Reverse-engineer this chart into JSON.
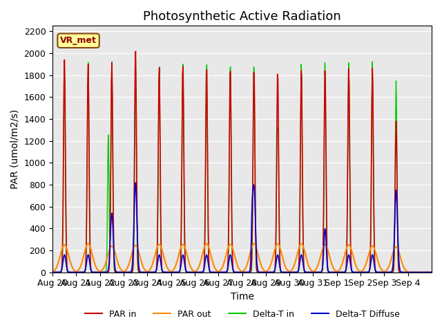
{
  "title": "Photosynthetic Active Radiation",
  "ylabel": "PAR (umol/m2/s)",
  "xlabel": "Time",
  "ylim": [
    0,
    2250
  ],
  "yticks": [
    0,
    200,
    400,
    600,
    800,
    1000,
    1200,
    1400,
    1600,
    1800,
    2000,
    2200
  ],
  "xtick_labels": [
    "Aug 20",
    "Aug 21",
    "Aug 22",
    "Aug 23",
    "Aug 24",
    "Aug 25",
    "Aug 26",
    "Aug 27",
    "Aug 28",
    "Aug 29",
    "Aug 30",
    "Aug 31",
    "Sep 1",
    "Sep 2",
    "Sep 3",
    "Sep 4"
  ],
  "bg_color": "#e8e8e8",
  "fig_color": "#ffffff",
  "colors": {
    "PAR in": "#cc0000",
    "PAR out": "#ff8800",
    "Delta-T in": "#00cc00",
    "Delta-T Diffuse": "#0000cc"
  },
  "legend_labels": [
    "PAR in",
    "PAR out",
    "Delta-T in",
    "Delta-T Diffuse"
  ],
  "label_box_text": "VR_met",
  "label_box_color": "#ffff99",
  "label_box_edge": "#8b4513",
  "title_fontsize": 13,
  "axis_fontsize": 10,
  "tick_fontsize": 9
}
